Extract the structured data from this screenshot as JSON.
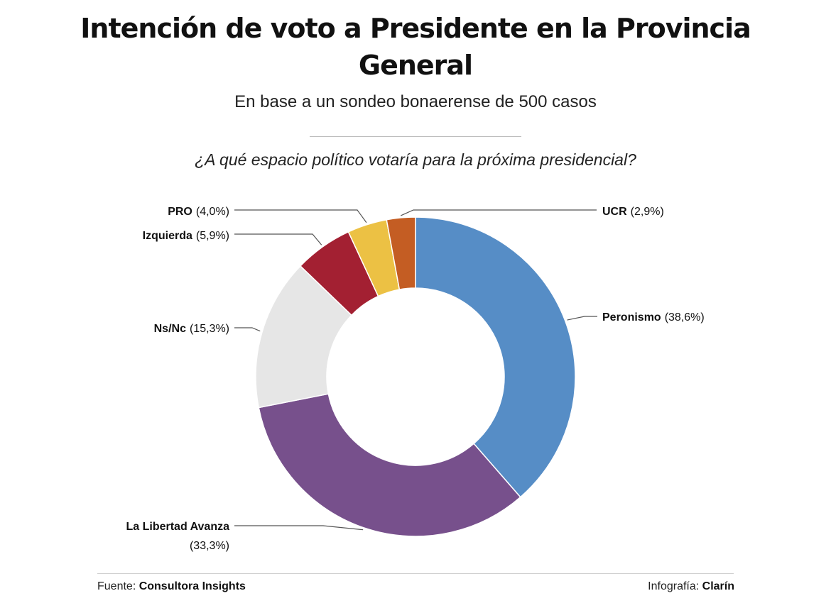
{
  "title_line1": "Intención de voto a Presidente en la Provincia",
  "title_line2": "General",
  "subtitle": "En base a un sondeo bonaerense de 500 casos",
  "question": "¿A qué espacio político votaría para la próxima presidencial?",
  "footer": {
    "source_label": "Fuente: ",
    "source_name": "Consultora Insights",
    "credit_label": "Infografía: ",
    "credit_name": "Clarín"
  },
  "chart_data": {
    "type": "pie",
    "donut": true,
    "slices": [
      {
        "name": "Peronismo",
        "pct_label": "(38,6%)",
        "value": 38.6,
        "color": "#568dc6"
      },
      {
        "name": "La Libertad Avanza",
        "pct_label": "(33,3%)",
        "value": 33.3,
        "color": "#77508c"
      },
      {
        "name": "Ns/Nc",
        "pct_label": "(15,3%)",
        "value": 15.3,
        "color": "#e6e6e6"
      },
      {
        "name": "Izquierda",
        "pct_label": "(5,9%)",
        "value": 5.9,
        "color": "#a32032"
      },
      {
        "name": "PRO",
        "pct_label": "(4,0%)",
        "value": 4.0,
        "color": "#ecc144"
      },
      {
        "name": "UCR",
        "pct_label": "(2,9%)",
        "value": 2.9,
        "color": "#c45d23"
      }
    ]
  }
}
